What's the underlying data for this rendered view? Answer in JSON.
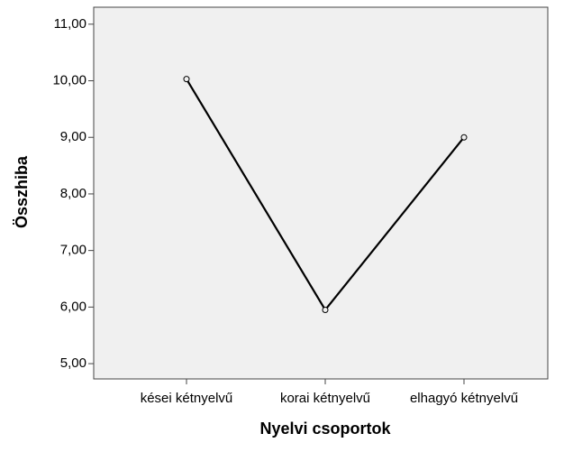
{
  "chart_data": {
    "type": "line",
    "x_label": "Nyelvi csoportok",
    "y_label": "Összhiba",
    "categories": [
      "kései kétnyelvű",
      "korai kétnyelvű",
      "elhagyó kétnyelvű"
    ],
    "series": [
      {
        "color": "#000000",
        "values": [
          10.03,
          5.95,
          9.0
        ]
      }
    ],
    "ylim": [
      4.73,
      11.3
    ],
    "yticks": [
      {
        "value": 5,
        "label": "5,00"
      },
      {
        "value": 6,
        "label": "6,00"
      },
      {
        "value": 7,
        "label": "7,00"
      },
      {
        "value": 8,
        "label": "8,00"
      },
      {
        "value": 9,
        "label": "9,00"
      },
      {
        "value": 10,
        "label": "10,00"
      },
      {
        "value": 11,
        "label": "11,00"
      }
    ],
    "grid": false
  }
}
